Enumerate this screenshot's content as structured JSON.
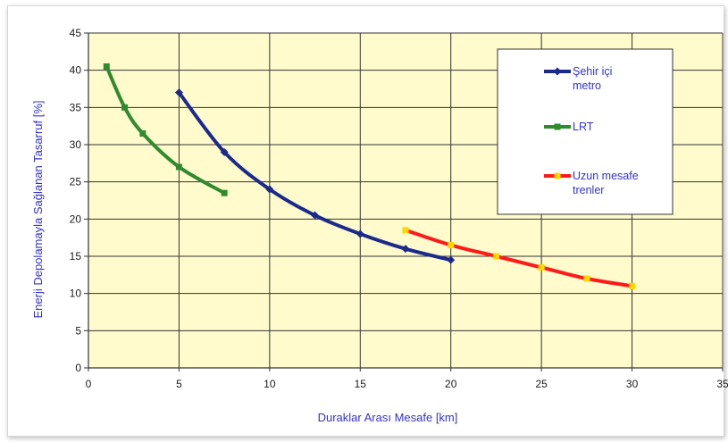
{
  "chart_data": {
    "type": "line",
    "title": "",
    "xlabel": "Duraklar Arası Mesafe [km]",
    "ylabel": "Enerji Depolamayla Sağlanan Tasarruf [%]",
    "xlim": [
      0,
      35
    ],
    "ylim": [
      0,
      45
    ],
    "x_ticks": [
      "0",
      "5",
      "10",
      "15",
      "20",
      "25",
      "30",
      "35"
    ],
    "y_ticks": [
      "0",
      "5",
      "10",
      "15",
      "20",
      "25",
      "30",
      "35",
      "40",
      "45"
    ],
    "grid": true,
    "legend_position": "top-right",
    "plot_background": "#fffbcc",
    "series": [
      {
        "name_lines": [
          "Şehir içi",
          "metro"
        ],
        "color": "#1b2a8c",
        "marker": "diamond",
        "points": [
          [
            5,
            37
          ],
          [
            7.5,
            29
          ],
          [
            10,
            24
          ],
          [
            12.5,
            20.5
          ],
          [
            15,
            18
          ],
          [
            17.5,
            16
          ],
          [
            20,
            14.5
          ]
        ]
      },
      {
        "name_lines": [
          "LRT"
        ],
        "color": "#2e8b2e",
        "marker": "square",
        "points": [
          [
            1,
            40.5
          ],
          [
            2,
            35
          ],
          [
            3,
            31.5
          ],
          [
            5,
            27
          ],
          [
            7.5,
            23.5
          ]
        ]
      },
      {
        "name_lines": [
          "Uzun mesafe",
          "trenler"
        ],
        "color": "#ff1a1a",
        "marker_color": "#ffd700",
        "marker": "square",
        "points": [
          [
            17.5,
            18.5
          ],
          [
            20,
            16.5
          ],
          [
            22.5,
            15
          ],
          [
            25,
            13.5
          ],
          [
            27.5,
            12
          ],
          [
            30,
            11
          ]
        ]
      }
    ]
  }
}
